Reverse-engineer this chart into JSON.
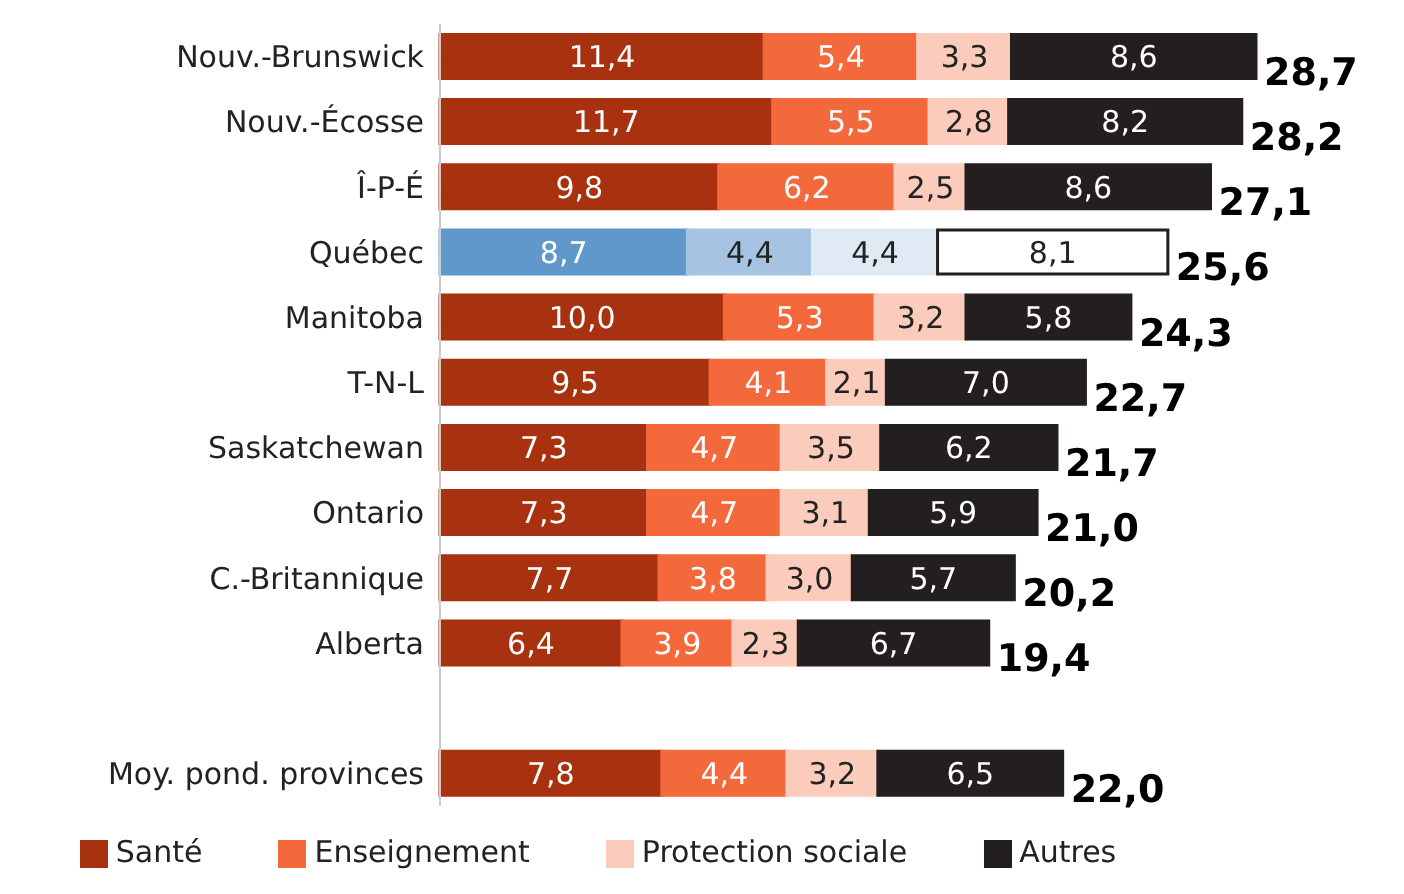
{
  "chart_data": {
    "type": "bar",
    "orientation": "horizontal",
    "stacked": true,
    "legend": "bottom",
    "categories": [
      "Nouv.-Brunswick",
      "Nouv.-Écosse",
      "Î-P-É",
      "Québec",
      "Manitoba",
      "T-N-L",
      "Saskatchewan",
      "Ontario",
      "C.-Britannique",
      "Alberta",
      null,
      "Moy. pond. provinces"
    ],
    "series": [
      {
        "name": "Santé",
        "color": "#a83210",
        "colors": [
          "#a83210",
          "#a83210",
          "#a83210",
          "#6198cb",
          "#a83210",
          "#a83210",
          "#a83210",
          "#a83210",
          "#a83210",
          "#a83210",
          "#a83210",
          "#a83210"
        ],
        "values": [
          11.4,
          11.7,
          9.8,
          8.7,
          10.0,
          9.5,
          7.3,
          7.3,
          7.7,
          6.4,
          null,
          7.8
        ],
        "value_labels": [
          "11,4",
          "11,7",
          "9,8",
          "8,7",
          "10,0",
          "9,5",
          "7,3",
          "7,3",
          "7,7",
          "6,4",
          null,
          "7,8"
        ]
      },
      {
        "name": "Enseignement",
        "color": "#f4693c",
        "colors": [
          "#f4693c",
          "#f4693c",
          "#f4693c",
          "#a6c4e2",
          "#f4693c",
          "#f4693c",
          "#f4693c",
          "#f4693c",
          "#f4693c",
          "#f4693c",
          "#f4693c",
          "#f4693c"
        ],
        "values": [
          5.4,
          5.5,
          6.2,
          4.4,
          5.3,
          4.1,
          4.7,
          4.7,
          3.8,
          3.9,
          null,
          4.4
        ],
        "value_labels": [
          "5,4",
          "5,5",
          "6,2",
          "4,4",
          "5,3",
          "4,1",
          "4,7",
          "4,7",
          "3,8",
          "3,9",
          null,
          "4,4"
        ]
      },
      {
        "name": "Protection sociale",
        "color": "#fbcbbb",
        "colors": [
          "#fbcbbb",
          "#fbcbbb",
          "#fbcbbb",
          "#dfeaf5",
          "#fbcbbb",
          "#fbcbbb",
          "#fbcbbb",
          "#fbcbbb",
          "#fbcbbb",
          "#fbcbbb",
          "#fbcbbb",
          "#fbcbbb"
        ],
        "values": [
          3.3,
          2.8,
          2.5,
          4.4,
          3.2,
          2.1,
          3.5,
          3.1,
          3.0,
          2.3,
          null,
          3.2
        ],
        "value_labels": [
          "3,3",
          "2,8",
          "2,5",
          "4,4",
          "3,2",
          "2,1",
          "3,5",
          "3,1",
          "3,0",
          "2,3",
          null,
          "3,2"
        ]
      },
      {
        "name": "Autres",
        "color": "#231f20",
        "colors": [
          "#231f20",
          "#231f20",
          "#231f20",
          "#ffffff",
          "#231f20",
          "#231f20",
          "#231f20",
          "#231f20",
          "#231f20",
          "#231f20",
          "#231f20",
          "#231f20"
        ],
        "values": [
          8.6,
          8.2,
          8.6,
          8.1,
          5.8,
          7.0,
          6.2,
          5.9,
          5.7,
          6.7,
          null,
          6.5
        ],
        "value_labels": [
          "8,6",
          "8,2",
          "8,6",
          "8,1",
          "5,8",
          "7,0",
          "6,2",
          "5,9",
          "5,7",
          "6,7",
          null,
          "6,5"
        ]
      }
    ],
    "totals": [
      "28,7",
      "28,2",
      "27,1",
      "25,6",
      "24,3",
      "22,7",
      "21,7",
      "21,0",
      "20,2",
      "19,4",
      null,
      "22,0"
    ]
  }
}
